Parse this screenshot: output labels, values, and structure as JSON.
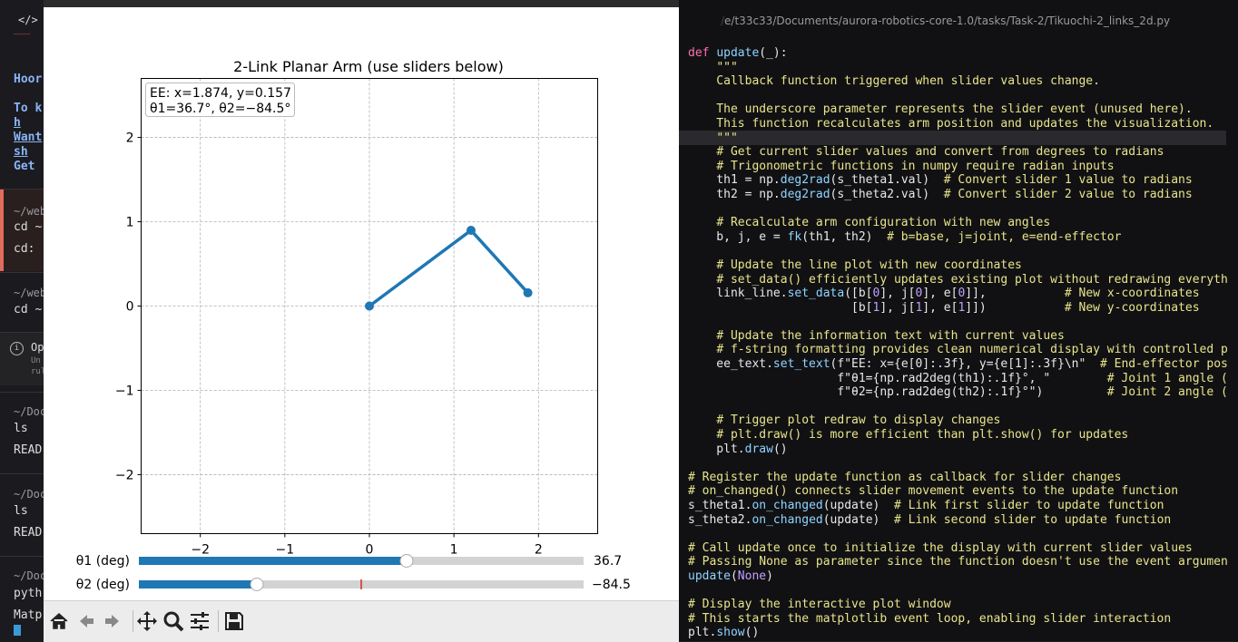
{
  "terminal": {
    "lines": [
      {
        "id": "hoor",
        "text": "Hoor",
        "style": "hl"
      },
      {
        "id": "tok",
        "text": "To k",
        "style": "hl"
      },
      {
        "id": "h",
        "text": "h",
        "style": "hl ul"
      },
      {
        "id": "want",
        "text": "Want",
        "style": "hl ul"
      },
      {
        "id": "sh",
        "text": "sh",
        "style": "hl ul"
      },
      {
        "id": "get",
        "text": "Get",
        "style": "hl"
      },
      {
        "id": "web1",
        "text": "~/web",
        "style": "dim"
      },
      {
        "id": "cd1",
        "text": "cd ~",
        "style": ""
      },
      {
        "id": "cd2",
        "text": "cd:",
        "style": ""
      },
      {
        "id": "web2",
        "text": "~/web",
        "style": "dim"
      },
      {
        "id": "cd3",
        "text": "cd ~",
        "style": ""
      },
      {
        "id": "op",
        "text": "Op",
        "style": ""
      },
      {
        "id": "un",
        "text": "Un",
        "style": "tiny"
      },
      {
        "id": "rul",
        "text": "rul",
        "style": "tiny"
      },
      {
        "id": "doc1",
        "text": "~/Doc",
        "style": "dim"
      },
      {
        "id": "ls1",
        "text": "ls",
        "style": ""
      },
      {
        "id": "read1",
        "text": "READ",
        "style": ""
      },
      {
        "id": "doc2",
        "text": "~/Doc",
        "style": "dim"
      },
      {
        "id": "ls2",
        "text": "ls",
        "style": ""
      },
      {
        "id": "read2",
        "text": "READ",
        "style": ""
      },
      {
        "id": "doc3",
        "text": "~/Doc",
        "style": "dim"
      },
      {
        "id": "pyth",
        "text": "pyth",
        "style": ""
      },
      {
        "id": "matp",
        "text": "Matp",
        "style": ""
      }
    ]
  },
  "plot": {
    "title": "2-Link Planar Arm (use sliders below)",
    "ee_text_line1": "EE: x=1.874, y=0.157",
    "ee_text_line2": "θ1=36.7°, θ2=−84.5°",
    "slider1": {
      "label": "θ1 (deg)",
      "value_text": "36.7",
      "value": 36.7,
      "min": -180,
      "max": 180,
      "color": "#1f77b4"
    },
    "slider2": {
      "label": "θ2 (deg)",
      "value_text": "−84.5",
      "value": -84.5,
      "min": -180,
      "max": 180,
      "init": 0,
      "color": "#1f77b4"
    }
  },
  "chart_data": {
    "type": "line",
    "title": "2-Link Planar Arm (use sliders below)",
    "x": [
      0,
      1.202,
      1.874
    ],
    "y": [
      0,
      0.898,
      0.157
    ],
    "xlim": [
      -2.7,
      2.7
    ],
    "ylim": [
      -2.7,
      2.7
    ],
    "xticks": [
      -2,
      -1,
      0,
      1,
      2
    ],
    "yticks": [
      -2,
      -1,
      0,
      1,
      2
    ],
    "tick_labels_x": [
      "−2",
      "−1",
      "0",
      "1",
      "2"
    ],
    "tick_labels_y": [
      "−2",
      "−1",
      "0",
      "1",
      "2"
    ],
    "grid": true,
    "line_color": "#1f77b4"
  },
  "toolbar": {
    "buttons": [
      {
        "id": "home",
        "icon": "home-icon"
      },
      {
        "id": "back",
        "icon": "back-arrow-icon"
      },
      {
        "id": "forward",
        "icon": "forward-arrow-icon"
      },
      {
        "id": "pan",
        "icon": "pan-icon"
      },
      {
        "id": "zoom",
        "icon": "zoom-icon"
      },
      {
        "id": "configure",
        "icon": "sliders-icon"
      },
      {
        "id": "save",
        "icon": "save-icon"
      }
    ]
  },
  "editor": {
    "path_prefix": "/",
    "path": "e/t33c33/Documents/aurora-robotics-core-1.0/tasks/Task-2/Tikuochi-2_links_2d.py",
    "code_lines": [
      "def update(_):",
      "    \"\"\"",
      "    Callback function triggered when slider values change.",
      "",
      "    The underscore parameter represents the slider event (unused here).",
      "    This function recalculates arm position and updates the visualization.",
      "    \"\"\"",
      "    # Get current slider values and convert from degrees to radians",
      "    # Trigonometric functions in numpy require radian inputs",
      "    th1 = np.deg2rad(s_theta1.val)  # Convert slider 1 value to radians",
      "    th2 = np.deg2rad(s_theta2.val)  # Convert slider 2 value to radians",
      "",
      "    # Recalculate arm configuration with new angles",
      "    b, j, e = fk(th1, th2)  # b=base, j=joint, e=end-effector",
      "",
      "    # Update the line plot with new coordinates",
      "    # set_data() efficiently updates existing plot without redrawing everyth",
      "    link_line.set_data([b[0], j[0], e[0]],           # New x-coordinates",
      "                       [b[1], j[1], e[1]])           # New y-coordinates",
      "",
      "    # Update the information text with current values",
      "    # f-string formatting provides clean numerical display with controlled p",
      "    ee_text.set_text(f\"EE: x={e[0]:.3f}, y={e[1]:.3f}\\n\"  # End-effector pos",
      "                     f\"θ1={np.rad2deg(th1):.1f}°, \"        # Joint 1 angle (",
      "                     f\"θ2={np.rad2deg(th2):.1f}°\")         # Joint 2 angle (",
      "",
      "    # Trigger plot redraw to display changes",
      "    # plt.draw() is more efficient than plt.show() for updates",
      "    plt.draw()",
      "",
      "# Register the update function as callback for slider changes",
      "# on_changed() connects slider movement events to the update function",
      "s_theta1.on_changed(update)  # Link first slider to update function",
      "s_theta2.on_changed(update)  # Link second slider to update function",
      "",
      "# Call update once to initialize the display with current slider values",
      "# Passing None as parameter since the function doesn't use the event argumen",
      "update(None)",
      "",
      "# Display the interactive plot window",
      "# This starts the matplotlib event loop, enabling slider interaction",
      "plt.show()"
    ]
  }
}
